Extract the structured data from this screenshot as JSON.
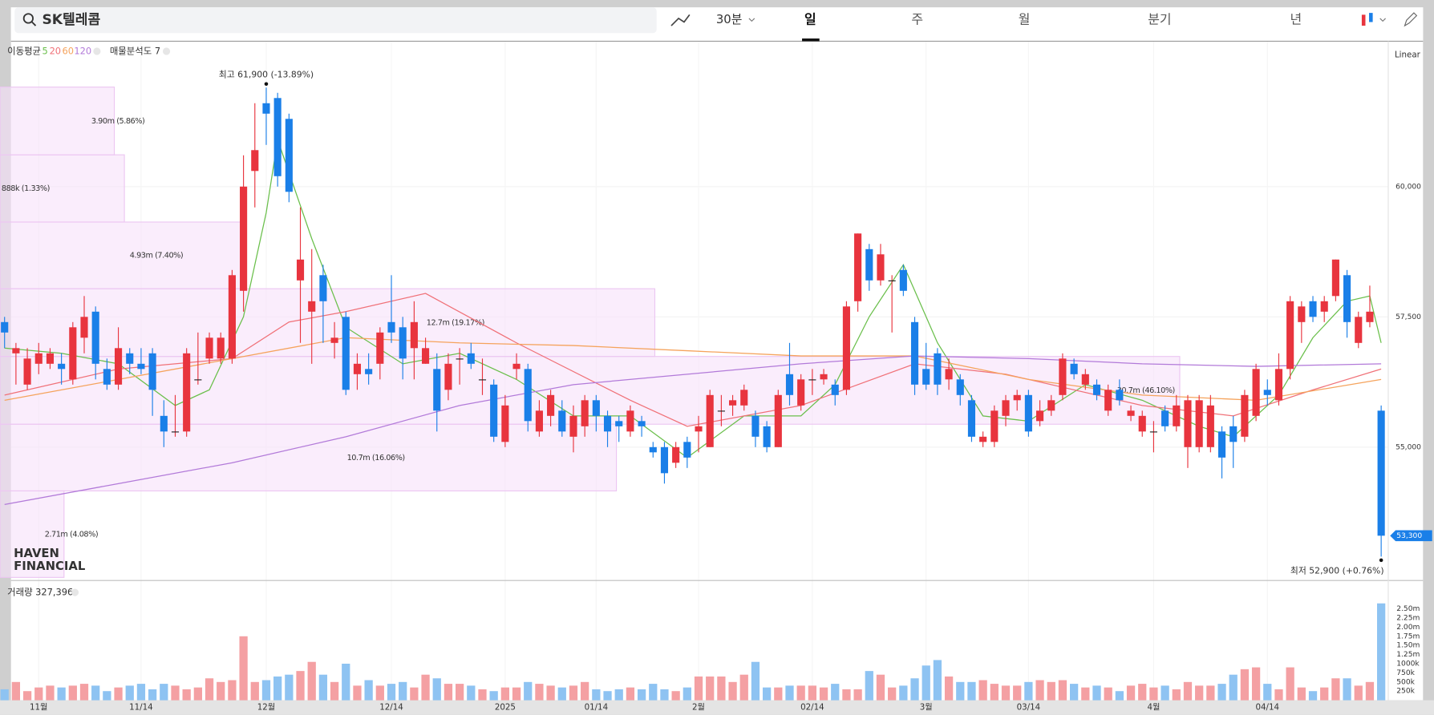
{
  "header": {
    "search": "SK텔레콤",
    "interval": "30분",
    "tabs": [
      "일",
      "주",
      "월",
      "분기",
      "년"
    ],
    "scale": "Linear"
  },
  "legend": {
    "ma_label": "이동평균",
    "profile_label": "매물분석도 7"
  },
  "watermark": [
    "HAVEN",
    "FINANCIAL"
  ],
  "chart_data": {
    "type": "candlestick",
    "categories": [
      null,
      null,
      null,
      "11월",
      null,
      null,
      null,
      null,
      null,
      null,
      null,
      null,
      "11/14",
      null,
      null,
      null,
      null,
      null,
      null,
      null,
      null,
      null,
      null,
      "12월",
      null,
      null,
      null,
      null,
      null,
      null,
      null,
      null,
      null,
      null,
      "12/14",
      null,
      null,
      null,
      null,
      null,
      null,
      null,
      null,
      null,
      "2025",
      null,
      null,
      null,
      null,
      null,
      null,
      null,
      "01/14",
      null,
      null,
      null,
      null,
      null,
      null,
      null,
      null,
      "2월",
      null,
      null,
      null,
      null,
      null,
      null,
      null,
      null,
      null,
      "02/14",
      null,
      null,
      null,
      null,
      null,
      null,
      null,
      null,
      null,
      "3월",
      null,
      null,
      null,
      null,
      null,
      null,
      null,
      null,
      "03/14",
      null,
      null,
      null,
      null,
      null,
      null,
      null,
      null,
      null,
      null,
      "4월",
      null,
      null,
      null,
      null,
      null,
      null,
      null,
      null,
      null,
      "04/14",
      null,
      null,
      null,
      null,
      null,
      null,
      null,
      null,
      null,
      null
    ],
    "open": [
      57400,
      56800,
      56200,
      56600,
      56600,
      56600,
      56300,
      57100,
      57600,
      56500,
      56200,
      56800,
      56600,
      56800,
      55600,
      55300,
      55300,
      56300,
      56700,
      56700,
      56700,
      58000,
      60300,
      61600,
      61700,
      61300,
      58200,
      57600,
      58300,
      57000,
      57500,
      56400,
      56500,
      56600,
      57400,
      57300,
      56900,
      56600,
      56500,
      56100,
      56700,
      56800,
      56300,
      56200,
      55100,
      56500,
      56500,
      55300,
      55600,
      55700,
      55200,
      55400,
      55900,
      55600,
      55500,
      55300,
      55500,
      55000,
      55000,
      54700,
      55100,
      55300,
      55000,
      55700,
      55800,
      55800,
      55600,
      55400,
      55000,
      56400,
      55800,
      56300,
      56300,
      56200,
      56100,
      57800,
      58800,
      58200,
      58200,
      58400,
      57400,
      56500,
      56800,
      56300,
      56300,
      55900,
      55100,
      55100,
      55600,
      55900,
      56000,
      55500,
      55700,
      56000,
      56600,
      56200,
      56200,
      55700,
      56100,
      55600,
      55300,
      55300,
      55700,
      55400,
      55000,
      55000,
      55000,
      55300,
      55400,
      55200,
      55600,
      56100,
      55900,
      56500,
      57400,
      57800,
      57600,
      57900,
      58300,
      57000,
      57400,
      55700
    ],
    "high": [
      57500,
      57000,
      56900,
      57000,
      56900,
      56800,
      57400,
      57900,
      57700,
      56700,
      57300,
      56900,
      56900,
      56900,
      55900,
      56000,
      56900,
      57200,
      57200,
      57200,
      58400,
      60600,
      61600,
      61900,
      61800,
      61400,
      59600,
      58800,
      58500,
      57400,
      57600,
      56800,
      56800,
      57300,
      58300,
      57500,
      57800,
      57100,
      56800,
      56800,
      56900,
      57000,
      56700,
      56300,
      56000,
      56800,
      56600,
      55900,
      56100,
      55900,
      55800,
      56000,
      56000,
      55700,
      55600,
      55800,
      55600,
      55100,
      55100,
      55100,
      55200,
      55600,
      56100,
      56000,
      56000,
      56200,
      55700,
      55500,
      56100,
      57000,
      56400,
      56500,
      56500,
      56300,
      57800,
      59100,
      58900,
      58900,
      58300,
      58500,
      57500,
      57000,
      56900,
      56700,
      56400,
      56000,
      55300,
      55800,
      56000,
      56100,
      56100,
      55900,
      56000,
      56800,
      56700,
      56500,
      56300,
      56200,
      56300,
      55800,
      55700,
      55500,
      55800,
      56000,
      56000,
      56000,
      56000,
      55400,
      55600,
      56100,
      56600,
      56300,
      56800,
      57900,
      57800,
      57900,
      57900,
      58600,
      58400,
      57600,
      58100,
      55800
    ],
    "low": [
      56900,
      56200,
      56100,
      56400,
      56500,
      56200,
      56200,
      56800,
      56300,
      56100,
      56100,
      56400,
      56400,
      55600,
      55000,
      55200,
      55200,
      56200,
      56600,
      56600,
      56600,
      57600,
      59600,
      60800,
      60000,
      59700,
      57000,
      56600,
      57000,
      56700,
      56000,
      56100,
      56200,
      56300,
      57000,
      56300,
      56300,
      56600,
      55300,
      55900,
      56200,
      56500,
      56000,
      55100,
      55000,
      56300,
      55300,
      55200,
      55400,
      55200,
      54900,
      55200,
      55300,
      55000,
      55100,
      55200,
      55200,
      54800,
      54300,
      54600,
      54600,
      54900,
      55000,
      55400,
      55600,
      55700,
      55000,
      54900,
      55000,
      55800,
      55700,
      56000,
      56200,
      55800,
      56000,
      57600,
      58000,
      58100,
      57200,
      57900,
      56000,
      56100,
      56000,
      56100,
      55800,
      55100,
      55000,
      55000,
      55400,
      55700,
      55200,
      55400,
      55600,
      55900,
      56300,
      56100,
      55900,
      55600,
      55800,
      55500,
      55200,
      54900,
      55300,
      55300,
      54600,
      54900,
      54900,
      54400,
      54600,
      55100,
      55500,
      55800,
      55800,
      56300,
      57000,
      57400,
      57400,
      57800,
      57100,
      56900,
      57300,
      52900
    ],
    "close": [
      57200,
      56900,
      56700,
      56800,
      56800,
      56500,
      57300,
      57500,
      56600,
      56200,
      56900,
      56600,
      56500,
      56100,
      55300,
      55300,
      56800,
      56300,
      57100,
      57100,
      58300,
      60000,
      60700,
      61400,
      60200,
      59900,
      58600,
      57800,
      57800,
      57100,
      56100,
      56600,
      56400,
      57200,
      57200,
      56700,
      57400,
      56900,
      55700,
      56600,
      56700,
      56600,
      56300,
      55200,
      55800,
      56600,
      55500,
      55700,
      56000,
      55300,
      55600,
      55900,
      55600,
      55300,
      55400,
      55700,
      55400,
      54900,
      54500,
      55000,
      54800,
      55400,
      56000,
      55700,
      55900,
      56100,
      55200,
      55000,
      56000,
      56000,
      56300,
      56300,
      56400,
      56000,
      57700,
      59100,
      58200,
      58700,
      58200,
      58000,
      56200,
      56200,
      56200,
      56500,
      56000,
      55200,
      55200,
      55700,
      55900,
      56000,
      55300,
      55700,
      55900,
      56700,
      56400,
      56400,
      56000,
      56100,
      55900,
      55700,
      55600,
      55300,
      55400,
      55800,
      55900,
      55900,
      55800,
      54800,
      55100,
      56000,
      56500,
      56000,
      56500,
      57800,
      57700,
      57500,
      57800,
      58600,
      57400,
      57500,
      57600,
      53300
    ],
    "up_color": "#e8343e",
    "down_color": "#1a7fe8",
    "ylim": [
      52440,
      62737
    ],
    "yticks": [
      {
        "value": 55000,
        "label": "55,000"
      },
      {
        "value": 57500,
        "label": "57,500"
      },
      {
        "value": 60000,
        "label": "60,000"
      }
    ],
    "last_price": {
      "value": 53300,
      "label": "53,300"
    },
    "annotations": {
      "high": "최고 61,900 (-13.89%)",
      "low": "최저 52,900 (+0.76%)"
    },
    "series": [
      {
        "name": "5",
        "color": "#6abf4b",
        "x": [
          0,
          5,
          10,
          15,
          18,
          21,
          23,
          24,
          27,
          30,
          35,
          40,
          45,
          50,
          55,
          60,
          65,
          70,
          73,
          76,
          79,
          82,
          86,
          90,
          95,
          100,
          105,
          108,
          112,
          115,
          118,
          120,
          121
        ],
        "values": [
          56900,
          56800,
          56600,
          55800,
          56100,
          57500,
          59500,
          60900,
          59000,
          57300,
          56600,
          56800,
          56300,
          55600,
          55600,
          54800,
          55600,
          55600,
          56200,
          57500,
          58500,
          57000,
          55600,
          55500,
          56200,
          55900,
          55400,
          55200,
          56000,
          57100,
          57800,
          57900,
          57000
        ]
      },
      {
        "name": "20",
        "color": "#f07178",
        "x": [
          0,
          10,
          20,
          25,
          30,
          37,
          45,
          55,
          60,
          70,
          80,
          88,
          100,
          108,
          115,
          121
        ],
        "values": [
          56000,
          56500,
          56700,
          57400,
          57600,
          57950,
          57000,
          55900,
          55400,
          55800,
          56600,
          56400,
          55800,
          55600,
          56100,
          56500
        ]
      },
      {
        "name": "60",
        "color": "#f5a35c",
        "x": [
          0,
          10,
          20,
          30,
          40,
          50,
          60,
          70,
          80,
          90,
          100,
          110,
          121
        ],
        "values": [
          55900,
          56300,
          56700,
          57100,
          57000,
          56950,
          56850,
          56750,
          56750,
          56300,
          56000,
          55900,
          56300
        ]
      },
      {
        "name": "120",
        "color": "#b27ad9",
        "x": [
          0,
          10,
          20,
          30,
          40,
          50,
          60,
          70,
          80,
          90,
          100,
          110,
          121
        ],
        "values": [
          53900,
          54300,
          54700,
          55200,
          55800,
          56200,
          56400,
          56600,
          56750,
          56700,
          56600,
          56550,
          56600
        ]
      }
    ],
    "volume_profile": {
      "bins": [
        52500,
        54160,
        55440,
        56740,
        58040,
        59320,
        60610,
        61910
      ],
      "values": [
        2710000,
        10700000,
        30700000,
        12700000,
        4930000,
        888000,
        3900000
      ],
      "value_labels": [
        "2.71m (4.08%)",
        "10.7m (16.06%)",
        "30.7m (46.10%)",
        "12.7m (19.17%)",
        "4.93m (7.40%)",
        "888k (1.33%)",
        "3.90m (5.86%)"
      ]
    },
    "volume": {
      "label": "거래량 327,396",
      "ylim": [
        0,
        3150000
      ],
      "yticks": [
        {
          "value": 250000,
          "label": "250k"
        },
        {
          "value": 500000,
          "label": "500k"
        },
        {
          "value": 750000,
          "label": "750k"
        },
        {
          "value": 1000000,
          "label": "1000k"
        },
        {
          "value": 1250000,
          "label": "1.25m"
        },
        {
          "value": 1500000,
          "label": "1.50m"
        },
        {
          "value": 1750000,
          "label": "1.75m"
        },
        {
          "value": 2000000,
          "label": "2.00m"
        },
        {
          "value": 2250000,
          "label": "2.25m"
        },
        {
          "value": 2500000,
          "label": "2.50m"
        }
      ],
      "values": [
        300000,
        500000,
        250000,
        350000,
        400000,
        350000,
        400000,
        450000,
        400000,
        250000,
        350000,
        400000,
        450000,
        300000,
        450000,
        400000,
        300000,
        350000,
        600000,
        500000,
        550000,
        1750000,
        500000,
        550000,
        650000,
        700000,
        800000,
        1050000,
        700000,
        500000,
        1000000,
        400000,
        550000,
        400000,
        450000,
        500000,
        350000,
        700000,
        600000,
        450000,
        450000,
        400000,
        300000,
        250000,
        350000,
        350000,
        500000,
        450000,
        400000,
        350000,
        400000,
        500000,
        300000,
        250000,
        300000,
        350000,
        300000,
        450000,
        300000,
        250000,
        350000,
        650000,
        650000,
        650000,
        500000,
        700000,
        1050000,
        350000,
        350000,
        400000,
        400000,
        400000,
        350000,
        450000,
        300000,
        300000,
        800000,
        700000,
        350000,
        400000,
        600000,
        950000,
        1100000,
        650000,
        500000,
        500000,
        550000,
        450000,
        400000,
        400000,
        500000,
        550000,
        500000,
        550000,
        450000,
        350000,
        400000,
        350000,
        250000,
        400000,
        450000,
        350000,
        400000,
        300000,
        500000,
        400000,
        400000,
        450000,
        700000,
        850000,
        900000,
        450000,
        300000,
        900000,
        350000,
        250000,
        350000,
        600000,
        600000,
        400000,
        500000,
        2650000
      ],
      "up_color": "#f4a0a3",
      "down_color": "#8ec3f2"
    }
  }
}
